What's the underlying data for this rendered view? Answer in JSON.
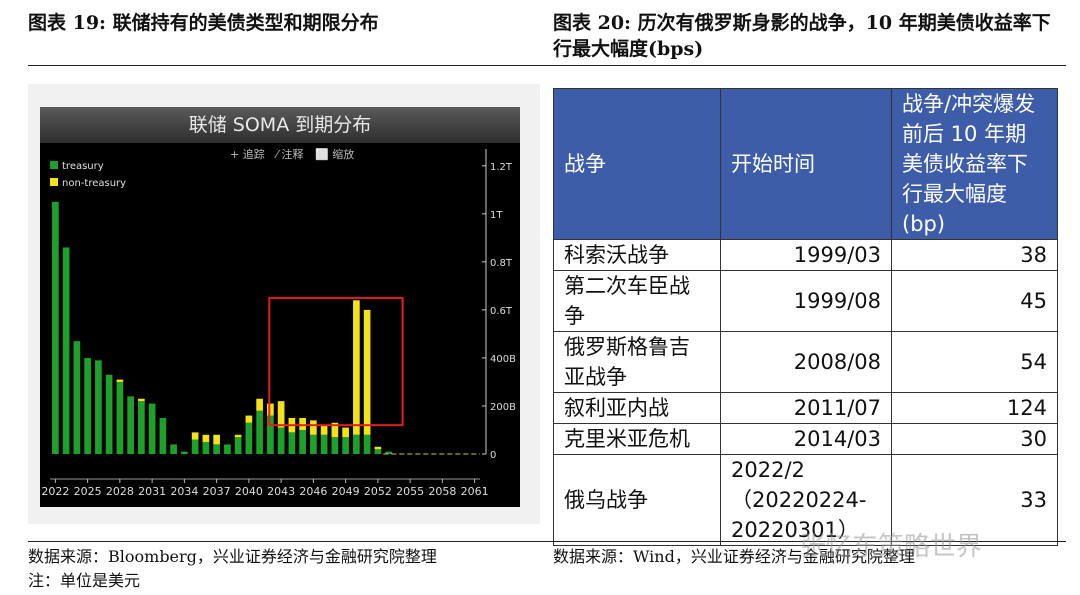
{
  "left_figure": {
    "title": "图表 19:  联储持有的美债类型和期限分布",
    "source": "数据来源：Bloomberg，兴业证券经济与金融研究院整理",
    "note": "注：单位是美元"
  },
  "right_figure": {
    "title": "图表 20:  历次有俄罗斯身影的战争，10 年期美债收益率下行最大幅度(bps)",
    "source": "数据来源：Wind，兴业证券经济与金融研究院整理"
  },
  "watermark": "张忆东策略世界",
  "chart_data": {
    "type": "bar",
    "title": "联储 SOMA 到期分布",
    "toolbar": [
      "+ 追踪",
      "⁄ 注释",
      "⬜ 缩放"
    ],
    "colors": {
      "treasury": "#1ea12a",
      "non_treasury": "#f2e21a",
      "highlight": "#e0211a",
      "background": "#000000"
    },
    "legend_position": "top-left",
    "y_axis_position": "right",
    "y_ticks": [
      0,
      0.2,
      0.4,
      0.6,
      0.8,
      1.0,
      1.2
    ],
    "y_tick_labels": [
      "0",
      "200B",
      "400B",
      "0.6T",
      "0.8T",
      "1T",
      "1.2T"
    ],
    "ylim": [
      0,
      1.27
    ],
    "unit": "trillion USD",
    "x_tick_years": [
      2022,
      2025,
      2028,
      2031,
      2034,
      2037,
      2040,
      2043,
      2046,
      2049,
      2052,
      2055,
      2058,
      2061
    ],
    "highlight_range": {
      "x": [
        2042,
        2055
      ],
      "y": [
        0.12,
        0.65
      ]
    },
    "categories": [
      2022,
      2023,
      2024,
      2025,
      2026,
      2027,
      2028,
      2029,
      2030,
      2031,
      2032,
      2033,
      2034,
      2035,
      2036,
      2037,
      2038,
      2039,
      2040,
      2041,
      2042,
      2043,
      2044,
      2045,
      2046,
      2047,
      2048,
      2049,
      2050,
      2051,
      2052,
      2053,
      2054,
      2055,
      2056,
      2057,
      2058,
      2059,
      2060,
      2061
    ],
    "series": [
      {
        "name": "treasury",
        "values": [
          1.05,
          0.86,
          0.47,
          0.4,
          0.39,
          0.33,
          0.3,
          0.24,
          0.22,
          0.21,
          0.15,
          0.04,
          0.01,
          0.06,
          0.05,
          0.04,
          0.04,
          0.07,
          0.13,
          0.18,
          0.16,
          0.11,
          0.09,
          0.1,
          0.08,
          0.08,
          0.07,
          0.07,
          0.08,
          0.08,
          0.02,
          0.01,
          0.0,
          0.0,
          0.0,
          0.0,
          0.0,
          0.0,
          0.0,
          0.0
        ]
      },
      {
        "name": "non-treasury",
        "values": [
          0.0,
          0.0,
          0.0,
          0.0,
          0.0,
          0.0,
          0.01,
          0.0,
          0.01,
          0.0,
          0.0,
          0.0,
          0.0,
          0.03,
          0.03,
          0.04,
          0.0,
          0.01,
          0.03,
          0.05,
          0.05,
          0.11,
          0.06,
          0.05,
          0.06,
          0.04,
          0.06,
          0.04,
          0.56,
          0.52,
          0.01,
          0.0,
          0.0,
          0.0,
          0.0,
          0.0,
          0.0,
          0.0,
          0.0,
          0.0
        ]
      }
    ]
  },
  "table": {
    "headers": [
      "战争",
      "开始时间",
      "战争/冲突爆发前后 10 年期美债收益率下行最大幅度(bp)"
    ],
    "rows": [
      {
        "war": "科索沃战争",
        "start": "1999/03",
        "bp": "38"
      },
      {
        "war": "第二次车臣战争",
        "start": "1999/08",
        "bp": "45"
      },
      {
        "war": "俄罗斯格鲁吉亚战争",
        "start": "2008/08",
        "bp": "54"
      },
      {
        "war": "叙利亚内战",
        "start": "2011/07",
        "bp": "124"
      },
      {
        "war": "克里米亚危机",
        "start": "2014/03",
        "bp": "30"
      },
      {
        "war": "俄乌战争",
        "start": "2022/2（20220224-20220301）",
        "bp": "33"
      }
    ]
  }
}
